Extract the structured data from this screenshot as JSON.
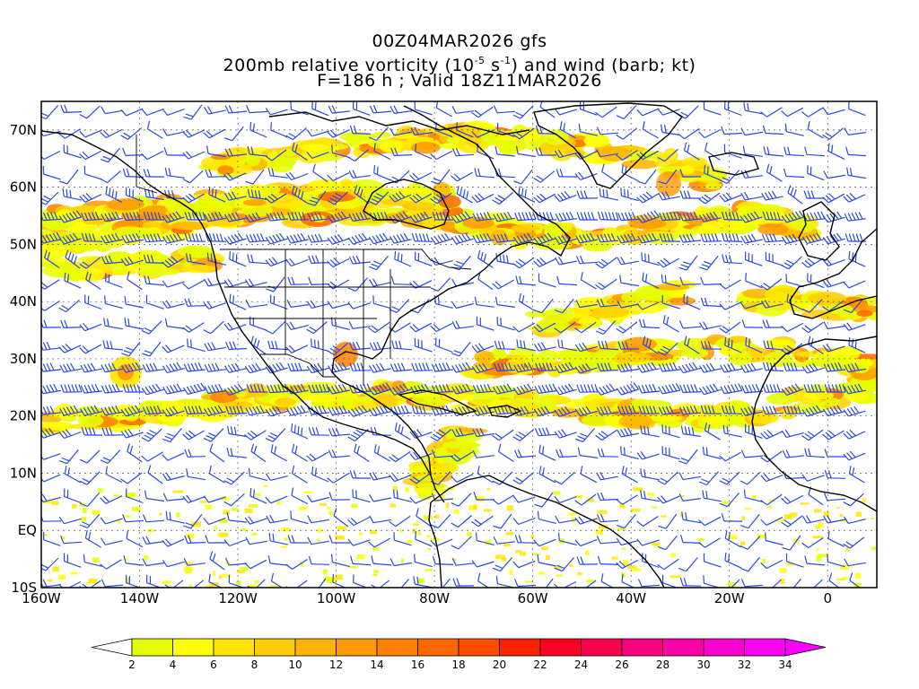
{
  "header": {
    "line1": "00Z04MAR2026 gfs",
    "line2_a": "200mb relative vorticity (10",
    "line2_exp1": "-5",
    "line2_b": " s",
    "line2_exp2": "-1",
    "line2_c": ") and wind (barb; kt)",
    "line3": "F=186 h ; Valid 18Z11MAR2026"
  },
  "map": {
    "lon_range": [
      -160,
      10
    ],
    "lat_range": [
      -10,
      75
    ],
    "lat_labels": [
      {
        "lat": 70,
        "text": "70N"
      },
      {
        "lat": 60,
        "text": "60N"
      },
      {
        "lat": 50,
        "text": "50N"
      },
      {
        "lat": 40,
        "text": "40N"
      },
      {
        "lat": 30,
        "text": "30N"
      },
      {
        "lat": 20,
        "text": "20N"
      },
      {
        "lat": 10,
        "text": "10N"
      },
      {
        "lat": 0,
        "text": "EQ"
      },
      {
        "lat": -10,
        "text": "10S"
      }
    ],
    "lon_labels": [
      {
        "lon": -160,
        "text": "160W"
      },
      {
        "lon": -140,
        "text": "140W"
      },
      {
        "lon": -120,
        "text": "120W"
      },
      {
        "lon": -100,
        "text": "100W"
      },
      {
        "lon": -80,
        "text": "80W"
      },
      {
        "lon": -60,
        "text": "60W"
      },
      {
        "lon": -40,
        "text": "40W"
      },
      {
        "lon": -20,
        "text": "20W"
      },
      {
        "lon": 0,
        "text": "0"
      }
    ],
    "colors": {
      "barb": "#2a48e6",
      "coast": "#000000",
      "grid": "#555555"
    }
  },
  "colorbar": {
    "colors": [
      "#e6ff00",
      "#ffff00",
      "#ffe600",
      "#ffcc00",
      "#ffb300",
      "#ff9900",
      "#ff8000",
      "#ff6600",
      "#ff4d00",
      "#ff2200",
      "#ff0020",
      "#ff0050",
      "#ff0080",
      "#ff00a8",
      "#ff00d0",
      "#ff00f0"
    ],
    "labels": [
      "2",
      "4",
      "6",
      "8",
      "10",
      "12",
      "14",
      "16",
      "18",
      "20",
      "22",
      "24",
      "26",
      "28",
      "30",
      "32",
      "34"
    ]
  }
}
